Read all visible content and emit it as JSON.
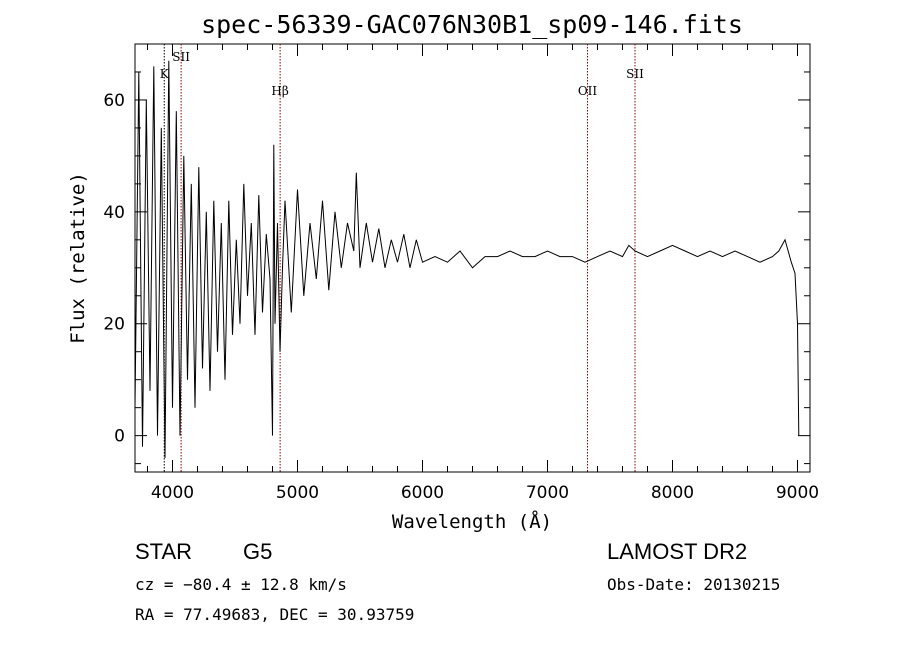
{
  "chart_data": {
    "type": "line",
    "title": "spec-56339-GAC076N30B1_sp09-146.fits",
    "xlabel": "Wavelength (Å)",
    "ylabel": "Flux (relative)",
    "xlim": [
      3700,
      9100
    ],
    "ylim": [
      -6.5,
      70
    ],
    "x_ticks": [
      4000,
      5000,
      6000,
      7000,
      8000,
      9000
    ],
    "y_ticks": [
      0,
      20,
      40,
      60
    ],
    "grid": false,
    "series": [
      {
        "color": "#000000",
        "x": [
          3700,
          3730,
          3760,
          3790,
          3820,
          3850,
          3880,
          3910,
          3940,
          3970,
          4000,
          4030,
          4060,
          4090,
          4120,
          4150,
          4180,
          4210,
          4240,
          4270,
          4300,
          4330,
          4360,
          4390,
          4420,
          4450,
          4480,
          4510,
          4540,
          4570,
          4600,
          4630,
          4660,
          4690,
          4720,
          4750,
          4780,
          4800,
          4810,
          4820,
          4840,
          4860,
          4880,
          4900,
          4950,
          5000,
          5050,
          5100,
          5150,
          5200,
          5250,
          5300,
          5350,
          5400,
          5450,
          5470,
          5500,
          5550,
          5600,
          5650,
          5700,
          5750,
          5800,
          5850,
          5900,
          5950,
          6000,
          6100,
          6200,
          6300,
          6400,
          6500,
          6600,
          6700,
          6800,
          6900,
          7000,
          7100,
          7200,
          7300,
          7400,
          7500,
          7600,
          7650,
          7700,
          7800,
          7900,
          8000,
          8100,
          8200,
          8300,
          8400,
          8500,
          8600,
          8700,
          8800,
          8850,
          8900,
          8950,
          8980,
          9000,
          9010
        ],
        "y": [
          5,
          65,
          -2,
          60,
          8,
          66,
          0,
          55,
          -4,
          67,
          5,
          58,
          0,
          50,
          10,
          45,
          5,
          48,
          12,
          40,
          8,
          42,
          15,
          38,
          10,
          42,
          18,
          35,
          20,
          45,
          25,
          38,
          18,
          43,
          22,
          36,
          28,
          0,
          52,
          20,
          38,
          15,
          30,
          42,
          22,
          44,
          25,
          38,
          28,
          42,
          26,
          40,
          30,
          38,
          33,
          47,
          30,
          38,
          31,
          37,
          30,
          35,
          31,
          36,
          30,
          35,
          31,
          32,
          31,
          33,
          30,
          32,
          32,
          33,
          32,
          32,
          33,
          32,
          32,
          31,
          32,
          33,
          32,
          34,
          33,
          32,
          33,
          34,
          33,
          32,
          33,
          32,
          33,
          32,
          31,
          32,
          33,
          35,
          31,
          29,
          20,
          0
        ]
      }
    ],
    "line_markers": [
      {
        "label": "K",
        "wavelength": 3934,
        "color": "#000000",
        "label_row": 2
      },
      {
        "label": "SII",
        "wavelength": 4069,
        "color": "#8b0000",
        "label_row": 1
      },
      {
        "label": "Hβ",
        "wavelength": 4861,
        "color": "#8b0000",
        "label_row": 3
      },
      {
        "label": "OII",
        "wavelength": 7320,
        "color": "#8b0000",
        "label_row": 3
      },
      {
        "label": "SII",
        "wavelength": 7700,
        "color": "#8b0000",
        "label_row": 2
      }
    ]
  },
  "info": {
    "object_class": "STAR",
    "subclass": "G5",
    "redshift_line": "cz = −80.4 ± 12.8 km/s",
    "coords_line": "RA =  77.49683, DEC =  30.93759",
    "survey": "LAMOST DR2",
    "obs_date_line": "Obs-Date: 20130215"
  }
}
